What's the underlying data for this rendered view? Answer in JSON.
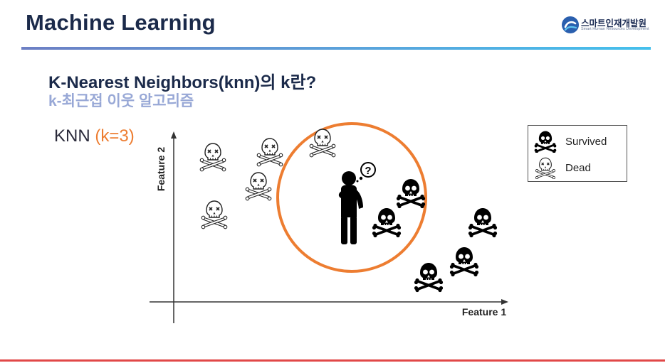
{
  "slide": {
    "title": "Machine Learning",
    "heading": "K-Nearest Neighbors(knn)의 k란?",
    "subheading": "k-최근접 이웃 알고리즘"
  },
  "logo": {
    "name": "스마트인재개발원",
    "subtitle": "Smart Human Resources Development",
    "icon": "sh-logo-icon"
  },
  "knn_label": {
    "prefix": "KNN ",
    "k": "(k=3)"
  },
  "legend": {
    "survived": "Survived",
    "dead": "Dead",
    "survived_icon": "skull-crossbones-icon",
    "dead_icon": "dead-skull-outline-icon"
  },
  "axes": {
    "x_label": "Feature 1",
    "y_label": "Feature 2"
  },
  "colors": {
    "title": "#1b2a4a",
    "subheading": "#98a8d6",
    "accent_orange": "#ed7d31",
    "survived": "#000000",
    "bottom_rule": "#e14848"
  },
  "query_point": {
    "icon": "thinking-person-icon",
    "question_mark": "?",
    "neighbors": 3
  }
}
